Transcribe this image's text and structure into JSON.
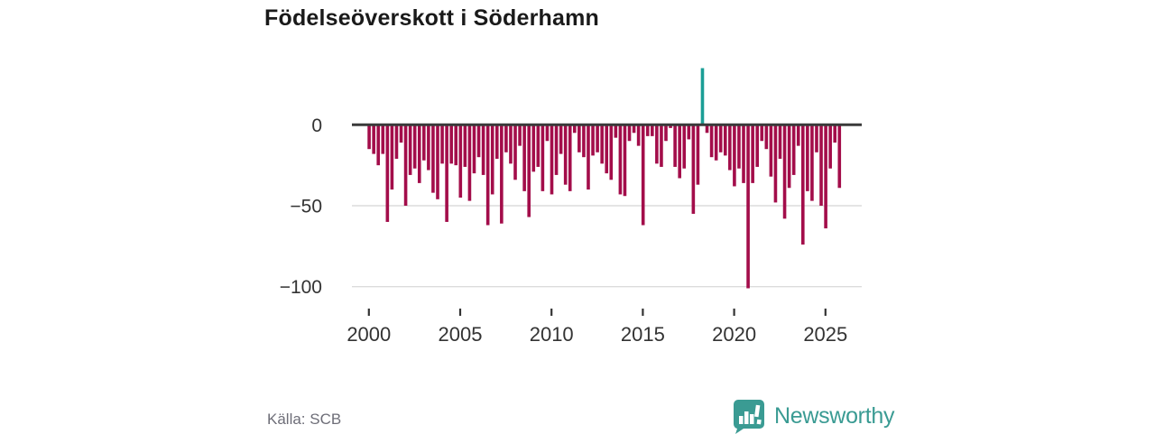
{
  "header": {
    "title": "Födelseöverskott i Söderhamn"
  },
  "footer": {
    "source": "Källa: SCB",
    "brand": "Newsworthy",
    "brand_logo_icon": "bar-chart-speech-bubble-icon"
  },
  "colors": {
    "bar": "#a30d4a",
    "highlight": "#1b9e96",
    "axis": "#3a3a3a",
    "grid": "#dcdcdc",
    "tick_label": "#333333",
    "brand": "#3a9b93",
    "source_text": "#6e6e78"
  },
  "chart_data": {
    "type": "bar",
    "title": "Födelseöverskott i Söderhamn",
    "xlabel": "",
    "ylabel": "",
    "frequency": "quarterly",
    "x_start_year": 2000,
    "x_end_year": 2025,
    "values": [
      -15,
      -18,
      -25,
      -18,
      -60,
      -40,
      -21,
      -11,
      -50,
      -31,
      -27,
      -36,
      -22,
      -28,
      -42,
      -46,
      -24,
      -60,
      -24,
      -25,
      -45,
      -26,
      -47,
      -30,
      -20,
      -31,
      -62,
      -43,
      -21,
      -61,
      -17,
      -24,
      -34,
      -13,
      -41,
      -57,
      -29,
      -26,
      -41,
      -10,
      -43,
      -31,
      -18,
      -37,
      -41,
      -5,
      -17,
      -20,
      -40,
      -19,
      -17,
      -24,
      -30,
      -34,
      -8,
      -43,
      -44,
      -10,
      -5,
      -13,
      -62,
      -7,
      -7,
      -24,
      -26,
      -10,
      -2,
      -26,
      -33,
      -27,
      -9,
      -55,
      -37,
      35,
      -5,
      -20,
      -22,
      -17,
      -19,
      -28,
      -38,
      -27,
      -36,
      -101,
      -36,
      -26,
      -10,
      -15,
      -32,
      -48,
      -21,
      -58,
      -39,
      -31,
      -13,
      -74,
      -41,
      -47,
      -17,
      -50,
      -64,
      -27,
      -11,
      -39
    ],
    "highlight_index": 73,
    "highlight_period": "2018-Q2",
    "x_ticks": [
      2000,
      2005,
      2010,
      2015,
      2020,
      2025
    ],
    "y_ticks": [
      0,
      -50,
      -100
    ],
    "y_tick_labels": [
      "0",
      "−50",
      "−100"
    ],
    "ylim": [
      -110,
      40
    ],
    "grid": "horizontal",
    "legend": "none"
  }
}
